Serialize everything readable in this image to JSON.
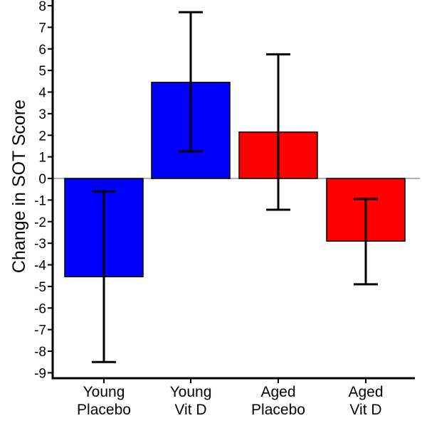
{
  "chart_data": {
    "type": "bar",
    "title": "",
    "xlabel": "",
    "ylabel": "Change in SOT Score",
    "ylim": [
      -9.25,
      8
    ],
    "yticks": [
      8,
      7,
      6,
      5,
      4,
      3,
      2,
      1,
      0,
      -1,
      -2,
      -3,
      -4,
      -5,
      -6,
      -7,
      -8,
      -9
    ],
    "grid": false,
    "legend": "none",
    "zero_line": true,
    "categories": [
      [
        "Young",
        "Placebo"
      ],
      [
        "Young",
        "Vit D"
      ],
      [
        "Aged",
        "Placebo"
      ],
      [
        "Aged",
        "Vit D"
      ]
    ],
    "values": [
      -4.55,
      4.45,
      2.15,
      -2.9
    ],
    "error_low": [
      -8.5,
      1.25,
      -1.45,
      -4.9
    ],
    "error_high": [
      -0.6,
      7.7,
      5.75,
      -0.95
    ],
    "colors": [
      "#0000ff",
      "#0000ff",
      "#ff0000",
      "#ff0000"
    ]
  }
}
